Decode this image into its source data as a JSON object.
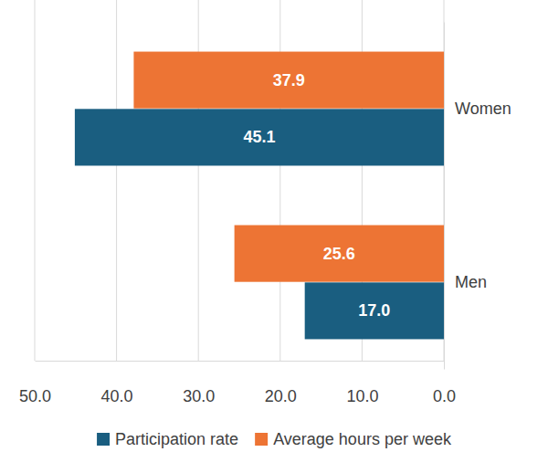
{
  "chart_data": {
    "type": "bar",
    "orientation": "horizontal",
    "categories": [
      "Women",
      "Men"
    ],
    "series": [
      {
        "name": "Participation rate",
        "color": "#1a5e80",
        "values": [
          45.1,
          17.0
        ],
        "value_labels": [
          "45.1",
          "17.0"
        ]
      },
      {
        "name": "Average hours per week",
        "color": "#ed7434",
        "values": [
          37.9,
          25.6
        ]
      }
    ],
    "xlim": [
      50,
      0
    ],
    "xticks": [
      {
        "value": 50,
        "label": "50.0"
      },
      {
        "value": 40,
        "label": "40.0"
      },
      {
        "value": 30,
        "label": "30.0"
      },
      {
        "value": 20,
        "label": "20.0"
      },
      {
        "value": 10,
        "label": "10.0"
      },
      {
        "value": 0,
        "label": "0.0"
      }
    ],
    "grid": true,
    "data_labels": true,
    "legend": "bottom"
  }
}
